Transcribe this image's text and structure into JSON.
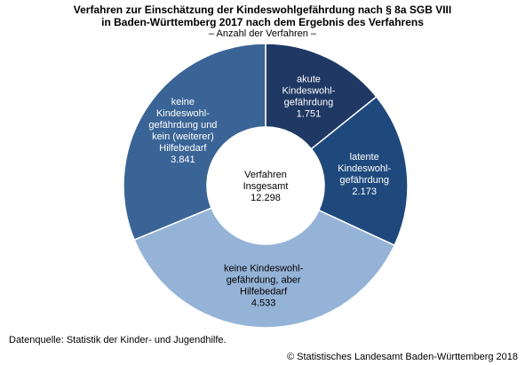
{
  "title_line1": "Verfahren zur Einschätzung der Kindeswohlgefährdung  nach § 8a SGB VIII",
  "title_line2": "in Baden-Württemberg 2017 nach dem Ergebnis des Verfahrens",
  "subtitle": "– Anzahl der Verfahren –",
  "source": "Datenquelle: Statistik der Kinder- und Jugendhilfe.",
  "copyright": "© Statistisches Landesamt Baden-Württemberg 2018",
  "chart_data": {
    "type": "pie",
    "donut": true,
    "title": "Verfahren zur Einschätzung der Kindeswohlgefährdung  nach § 8a SGB VIII in Baden-Württemberg 2017 nach dem Ergebnis des Verfahrens",
    "subtitle": "– Anzahl der Verfahren –",
    "center_label": [
      "Verfahren",
      "Insgesamt",
      "12.298"
    ],
    "total": 12298,
    "slices": [
      {
        "label": [
          "akute",
          "Kindeswohl-",
          "gefährdung"
        ],
        "value": 1751,
        "value_label": "1.751",
        "color": "#1f3864",
        "text_color": "#ffffff"
      },
      {
        "label": [
          "latente",
          "Kindeswohl-",
          "gefährdung"
        ],
        "value": 2173,
        "value_label": "2.173",
        "color": "#1f497d",
        "text_color": "#ffffff"
      },
      {
        "label": [
          "keine Kindeswohl-",
          "gefährdung, aber",
          "Hilfebedarf"
        ],
        "value": 4533,
        "value_label": "4.533",
        "color": "#95b3d7",
        "text_color": "#000000"
      },
      {
        "label": [
          "keine",
          "Kindeswohl-",
          "gefährdung und",
          "kein (weiterer)",
          "Hilfebedarf"
        ],
        "value": 3841,
        "value_label": "3.841",
        "color": "#3a6496",
        "text_color": "#ffffff"
      }
    ]
  }
}
